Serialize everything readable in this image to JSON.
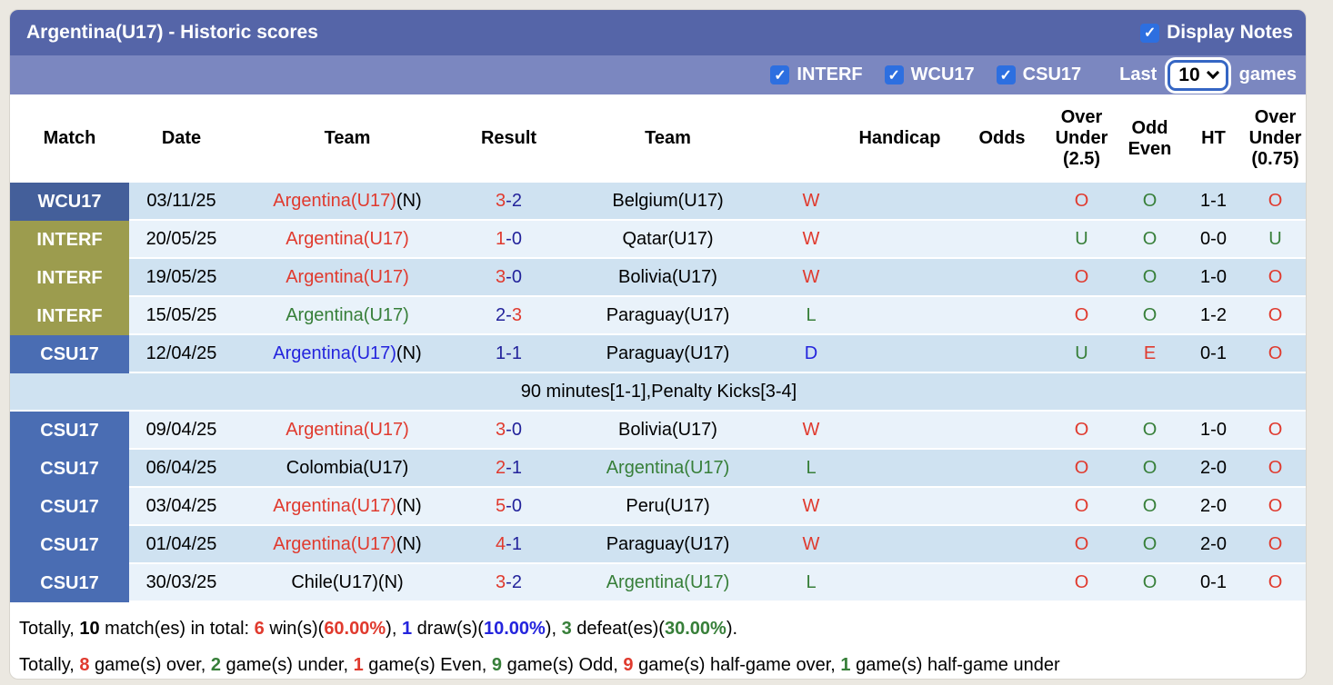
{
  "title": "Argentina(U17) - Historic scores",
  "display_notes": {
    "label": "Display Notes",
    "checked": true
  },
  "filters": {
    "competitions": [
      {
        "label": "INTERF",
        "checked": true
      },
      {
        "label": "WCU17",
        "checked": true
      },
      {
        "label": "CSU17",
        "checked": true
      }
    ],
    "last_label": "Last",
    "games_count": "10",
    "games_label": "games"
  },
  "palette": {
    "red": "#e03a2e",
    "green": "#377f39",
    "blue": "#2424dd",
    "navy": "#23239b",
    "black": "#000000"
  },
  "colors": {
    "title_bar": "#5565a8",
    "filter_bar": "#7b87c0",
    "checkbox_blue": "#2d6fe0",
    "row_dark": "#cfe2f1",
    "row_light": "#e9f2fa",
    "page_background": "#ebe8e1"
  },
  "table": {
    "competition_colors": {
      "WCU17": "#445f9a",
      "INTERF": "#9c9c4e",
      "CSU17": "#4a6db3"
    },
    "headers": {
      "match": "Match",
      "date": "Date",
      "team1": "Team",
      "result": "Result",
      "team2": "Team",
      "wdl": "",
      "handicap": "Handicap",
      "odds": "Odds",
      "ou25": "Over\nUnder\n(2.5)",
      "oddeven": "Odd\nEven",
      "ht": "HT",
      "ou075": "Over\nUnder\n(0.75)"
    },
    "rows": [
      {
        "comp": "WCU17",
        "shade": "dark",
        "date": "03/11/25",
        "home": {
          "name": "Argentina(U17)",
          "color": "red",
          "neutral": true
        },
        "score": {
          "home": "3",
          "away": "2",
          "home_color": "red",
          "away_color": "navy"
        },
        "away": {
          "name": "Belgium(U17)",
          "color": "black"
        },
        "wdl": {
          "text": "W",
          "color": "red"
        },
        "handicap": "",
        "odds": "",
        "ou25": {
          "text": "O",
          "color": "red"
        },
        "oddeven": {
          "text": "O",
          "color": "green"
        },
        "ht": "1-1",
        "ou075": {
          "text": "O",
          "color": "red"
        },
        "note": null
      },
      {
        "comp": "INTERF",
        "shade": "light",
        "date": "20/05/25",
        "home": {
          "name": "Argentina(U17)",
          "color": "red",
          "neutral": false
        },
        "score": {
          "home": "1",
          "away": "0",
          "home_color": "red",
          "away_color": "navy"
        },
        "away": {
          "name": "Qatar(U17)",
          "color": "black"
        },
        "wdl": {
          "text": "W",
          "color": "red"
        },
        "handicap": "",
        "odds": "",
        "ou25": {
          "text": "U",
          "color": "green"
        },
        "oddeven": {
          "text": "O",
          "color": "green"
        },
        "ht": "0-0",
        "ou075": {
          "text": "U",
          "color": "green"
        },
        "note": null
      },
      {
        "comp": "INTERF",
        "shade": "dark",
        "date": "19/05/25",
        "home": {
          "name": "Argentina(U17)",
          "color": "red",
          "neutral": false
        },
        "score": {
          "home": "3",
          "away": "0",
          "home_color": "red",
          "away_color": "navy"
        },
        "away": {
          "name": "Bolivia(U17)",
          "color": "black"
        },
        "wdl": {
          "text": "W",
          "color": "red"
        },
        "handicap": "",
        "odds": "",
        "ou25": {
          "text": "O",
          "color": "red"
        },
        "oddeven": {
          "text": "O",
          "color": "green"
        },
        "ht": "1-0",
        "ou075": {
          "text": "O",
          "color": "red"
        },
        "note": null
      },
      {
        "comp": "INTERF",
        "shade": "light",
        "date": "15/05/25",
        "home": {
          "name": "Argentina(U17)",
          "color": "green",
          "neutral": false
        },
        "score": {
          "home": "2",
          "away": "3",
          "home_color": "navy",
          "away_color": "red"
        },
        "away": {
          "name": "Paraguay(U17)",
          "color": "black"
        },
        "wdl": {
          "text": "L",
          "color": "green"
        },
        "handicap": "",
        "odds": "",
        "ou25": {
          "text": "O",
          "color": "red"
        },
        "oddeven": {
          "text": "O",
          "color": "green"
        },
        "ht": "1-2",
        "ou075": {
          "text": "O",
          "color": "red"
        },
        "note": null
      },
      {
        "comp": "CSU17",
        "shade": "dark",
        "date": "12/04/25",
        "home": {
          "name": "Argentina(U17)",
          "color": "blue",
          "neutral": true
        },
        "score": {
          "home": "1",
          "away": "1",
          "home_color": "navy",
          "away_color": "navy"
        },
        "away": {
          "name": "Paraguay(U17)",
          "color": "black"
        },
        "wdl": {
          "text": "D",
          "color": "blue"
        },
        "handicap": "",
        "odds": "",
        "ou25": {
          "text": "U",
          "color": "green"
        },
        "oddeven": {
          "text": "E",
          "color": "red"
        },
        "ht": "0-1",
        "ou075": {
          "text": "O",
          "color": "red"
        },
        "note": "90 minutes[1-1],Penalty Kicks[3-4]"
      },
      {
        "comp": "CSU17",
        "shade": "light",
        "date": "09/04/25",
        "home": {
          "name": "Argentina(U17)",
          "color": "red",
          "neutral": false
        },
        "score": {
          "home": "3",
          "away": "0",
          "home_color": "red",
          "away_color": "navy"
        },
        "away": {
          "name": "Bolivia(U17)",
          "color": "black"
        },
        "wdl": {
          "text": "W",
          "color": "red"
        },
        "handicap": "",
        "odds": "",
        "ou25": {
          "text": "O",
          "color": "red"
        },
        "oddeven": {
          "text": "O",
          "color": "green"
        },
        "ht": "1-0",
        "ou075": {
          "text": "O",
          "color": "red"
        },
        "note": null
      },
      {
        "comp": "CSU17",
        "shade": "dark",
        "date": "06/04/25",
        "home": {
          "name": "Colombia(U17)",
          "color": "black",
          "neutral": false
        },
        "score": {
          "home": "2",
          "away": "1",
          "home_color": "red",
          "away_color": "navy"
        },
        "away": {
          "name": "Argentina(U17)",
          "color": "green"
        },
        "wdl": {
          "text": "L",
          "color": "green"
        },
        "handicap": "",
        "odds": "",
        "ou25": {
          "text": "O",
          "color": "red"
        },
        "oddeven": {
          "text": "O",
          "color": "green"
        },
        "ht": "2-0",
        "ou075": {
          "text": "O",
          "color": "red"
        },
        "note": null
      },
      {
        "comp": "CSU17",
        "shade": "light",
        "date": "03/04/25",
        "home": {
          "name": "Argentina(U17)",
          "color": "red",
          "neutral": true
        },
        "score": {
          "home": "5",
          "away": "0",
          "home_color": "red",
          "away_color": "navy"
        },
        "away": {
          "name": "Peru(U17)",
          "color": "black"
        },
        "wdl": {
          "text": "W",
          "color": "red"
        },
        "handicap": "",
        "odds": "",
        "ou25": {
          "text": "O",
          "color": "red"
        },
        "oddeven": {
          "text": "O",
          "color": "green"
        },
        "ht": "2-0",
        "ou075": {
          "text": "O",
          "color": "red"
        },
        "note": null
      },
      {
        "comp": "CSU17",
        "shade": "dark",
        "date": "01/04/25",
        "home": {
          "name": "Argentina(U17)",
          "color": "red",
          "neutral": true
        },
        "score": {
          "home": "4",
          "away": "1",
          "home_color": "red",
          "away_color": "navy"
        },
        "away": {
          "name": "Paraguay(U17)",
          "color": "black"
        },
        "wdl": {
          "text": "W",
          "color": "red"
        },
        "handicap": "",
        "odds": "",
        "ou25": {
          "text": "O",
          "color": "red"
        },
        "oddeven": {
          "text": "O",
          "color": "green"
        },
        "ht": "2-0",
        "ou075": {
          "text": "O",
          "color": "red"
        },
        "note": null
      },
      {
        "comp": "CSU17",
        "shade": "light",
        "date": "30/03/25",
        "home": {
          "name": "Chile(U17)",
          "color": "black",
          "neutral": true
        },
        "score": {
          "home": "3",
          "away": "2",
          "home_color": "red",
          "away_color": "navy"
        },
        "away": {
          "name": "Argentina(U17)",
          "color": "green"
        },
        "wdl": {
          "text": "L",
          "color": "green"
        },
        "handicap": "",
        "odds": "",
        "ou25": {
          "text": "O",
          "color": "red"
        },
        "oddeven": {
          "text": "O",
          "color": "green"
        },
        "ht": "0-1",
        "ou075": {
          "text": "O",
          "color": "red"
        },
        "note": null
      }
    ]
  },
  "summary": {
    "lines": [
      [
        {
          "t": "Totally, "
        },
        {
          "t": "10",
          "b": true
        },
        {
          "t": " match(es) in total: "
        },
        {
          "t": "6",
          "b": true,
          "c": "red"
        },
        {
          "t": " win(s)("
        },
        {
          "t": "60.00%",
          "b": true,
          "c": "red"
        },
        {
          "t": "), "
        },
        {
          "t": "1",
          "b": true,
          "c": "blue"
        },
        {
          "t": " draw(s)("
        },
        {
          "t": "10.00%",
          "b": true,
          "c": "blue"
        },
        {
          "t": "), "
        },
        {
          "t": "3",
          "b": true,
          "c": "green"
        },
        {
          "t": " defeat(es)("
        },
        {
          "t": "30.00%",
          "b": true,
          "c": "green"
        },
        {
          "t": ")."
        }
      ],
      [
        {
          "t": "Totally, "
        },
        {
          "t": "8",
          "b": true,
          "c": "red"
        },
        {
          "t": " game(s) over, "
        },
        {
          "t": "2",
          "b": true,
          "c": "green"
        },
        {
          "t": " game(s) under, "
        },
        {
          "t": "1",
          "b": true,
          "c": "red"
        },
        {
          "t": " game(s) Even, "
        },
        {
          "t": "9",
          "b": true,
          "c": "green"
        },
        {
          "t": " game(s) Odd, "
        },
        {
          "t": "9",
          "b": true,
          "c": "red"
        },
        {
          "t": " game(s) half-game over, "
        },
        {
          "t": "1",
          "b": true,
          "c": "green"
        },
        {
          "t": " game(s) half-game under"
        }
      ]
    ]
  }
}
